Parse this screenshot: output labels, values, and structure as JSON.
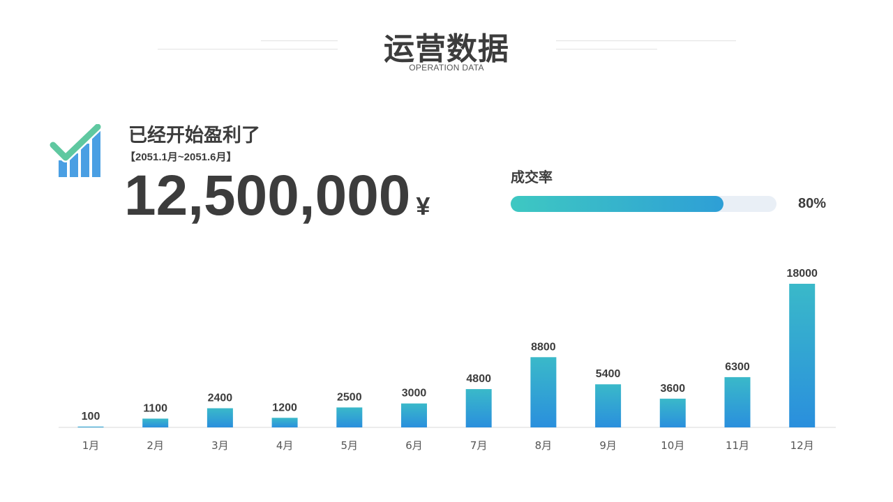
{
  "header": {
    "title": "运营数据",
    "subtitle": "OPERATION DATA"
  },
  "summary": {
    "headline": "已经开始盈利了",
    "period": "【2051.1月~2051.6月】",
    "revenue": "12,500,000",
    "currency": "¥",
    "icon": "check-chart-icon"
  },
  "rate": {
    "label": "成交率",
    "value": 80,
    "value_text": "80%"
  },
  "colors": {
    "text": "#3c3c3c",
    "bar_top": "#3ab9c9",
    "bar_bottom": "#2a8fdd",
    "progress_start": "#3ec8c2",
    "progress_end": "#2e9fd6",
    "track": "#e9eff6",
    "check": "#5fc8a0",
    "icon_bars": "#4a9fe3"
  },
  "chart_data": {
    "type": "bar",
    "categories": [
      "1月",
      "2月",
      "3月",
      "4月",
      "5月",
      "6月",
      "7月",
      "8月",
      "9月",
      "10月",
      "11月",
      "12月"
    ],
    "values": [
      100,
      1100,
      2400,
      1200,
      2500,
      3000,
      4800,
      8800,
      5400,
      3600,
      6300,
      18000
    ],
    "title": "",
    "xlabel": "",
    "ylabel": "",
    "ylim": [
      0,
      18000
    ],
    "grid": false,
    "legend": "none"
  }
}
